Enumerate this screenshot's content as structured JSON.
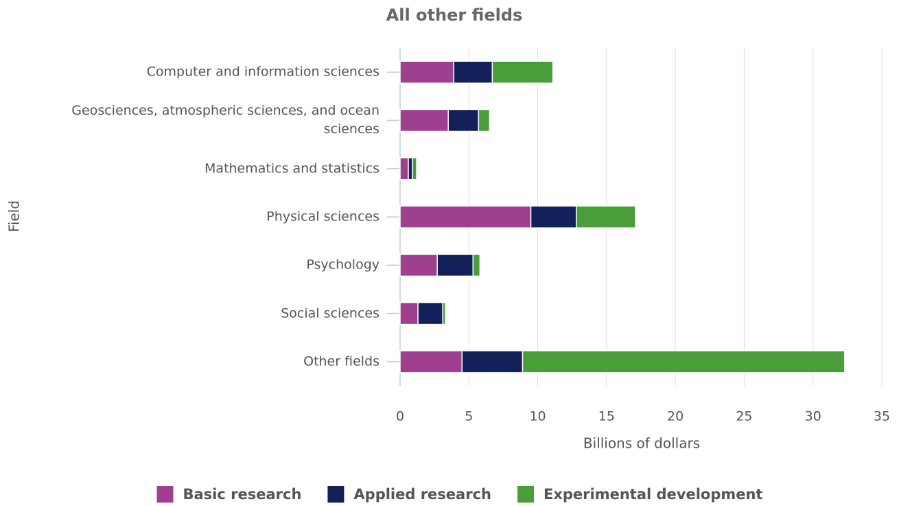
{
  "chart_data": {
    "type": "stacked_barh",
    "title": "All other fields",
    "xlabel": "Billions of dollars",
    "ylabel": "Field",
    "categories": [
      "Computer and information sciences",
      "Geosciences, atmospheric sciences, and ocean sciences",
      "Mathematics and statistics",
      "Physical sciences",
      "Psychology",
      "Social sciences",
      "Other fields"
    ],
    "series": [
      {
        "name": "Basic research",
        "color": "#9e3f8f",
        "values": [
          3.9,
          3.5,
          0.6,
          9.5,
          2.7,
          1.3,
          4.5
        ]
      },
      {
        "name": "Applied research",
        "color": "#13205a",
        "values": [
          2.8,
          2.2,
          0.3,
          3.3,
          2.6,
          1.8,
          4.4
        ]
      },
      {
        "name": "Experimental development",
        "color": "#4a9e3a",
        "values": [
          4.4,
          0.8,
          0.3,
          4.3,
          0.5,
          0.2,
          23.4
        ]
      }
    ],
    "xlim": [
      0,
      35
    ],
    "xticks": [
      0,
      5,
      10,
      15,
      20,
      25,
      30,
      35
    ],
    "grid": true,
    "legend": "bottom"
  }
}
